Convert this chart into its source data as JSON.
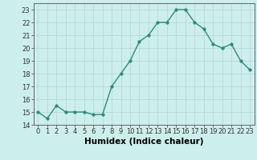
{
  "x": [
    0,
    1,
    2,
    3,
    4,
    5,
    6,
    7,
    8,
    9,
    10,
    11,
    12,
    13,
    14,
    15,
    16,
    17,
    18,
    19,
    20,
    21,
    22,
    23
  ],
  "y": [
    15.0,
    14.5,
    15.5,
    15.0,
    15.0,
    15.0,
    14.8,
    14.8,
    17.0,
    18.0,
    19.0,
    20.5,
    21.0,
    22.0,
    22.0,
    23.0,
    23.0,
    22.0,
    21.5,
    20.3,
    20.0,
    20.3,
    19.0,
    18.3
  ],
  "xlabel": "Humidex (Indice chaleur)",
  "xlim": [
    -0.5,
    23.5
  ],
  "ylim": [
    14,
    23.5
  ],
  "yticks": [
    14,
    15,
    16,
    17,
    18,
    19,
    20,
    21,
    22,
    23
  ],
  "xticks": [
    0,
    1,
    2,
    3,
    4,
    5,
    6,
    7,
    8,
    9,
    10,
    11,
    12,
    13,
    14,
    15,
    16,
    17,
    18,
    19,
    20,
    21,
    22,
    23
  ],
  "line_color": "#2e8b7a",
  "marker_size": 2.5,
  "bg_color": "#cceeed",
  "grid_color": "#b8d8d8",
  "label_fontsize": 7.5,
  "tick_fontsize": 6
}
